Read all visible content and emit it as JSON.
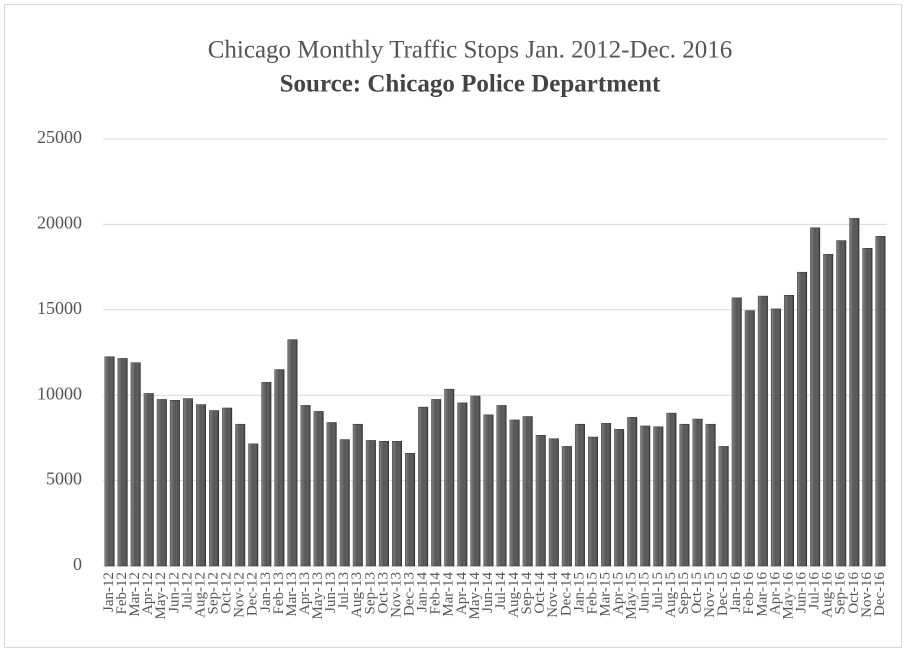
{
  "chart_data": {
    "type": "bar",
    "title": "Chicago Monthly Traffic Stops Jan. 2012-Dec. 2016",
    "subtitle": "Source: Chicago Police Department",
    "categories": [
      "Jan-12",
      "Feb-12",
      "Mar-12",
      "Apr-12",
      "May-12",
      "Jun-12",
      "Jul-12",
      "Aug-12",
      "Sep-12",
      "Oct-12",
      "Nov-12",
      "Dec-12",
      "Jan-13",
      "Feb-13",
      "Mar-13",
      "Apr-13",
      "May-13",
      "Jun-13",
      "Jul-13",
      "Aug-13",
      "Sep-13",
      "Oct-13",
      "Nov-13",
      "Dec-13",
      "Jan-14",
      "Feb-14",
      "Mar-14",
      "Apr-14",
      "May-14",
      "Jun-14",
      "Jul-14",
      "Aug-14",
      "Sep-14",
      "Oct-14",
      "Nov-14",
      "Dec-14",
      "Jan-15",
      "Feb-15",
      "Mar-15",
      "Apr-15",
      "May-15",
      "Jun-15",
      "Jul-15",
      "Aug-15",
      "Sep-15",
      "Oct-15",
      "Nov-15",
      "Dec-15",
      "Jan-16",
      "Feb-16",
      "Mar-16",
      "Apr-16",
      "May-16",
      "Jun-16",
      "Jul-16",
      "Aug-16",
      "Sep-16",
      "Oct-16",
      "Nov-16",
      "Dec-16"
    ],
    "values": [
      12250,
      12150,
      11900,
      10100,
      9750,
      9700,
      9800,
      9450,
      9100,
      9250,
      8300,
      7150,
      10750,
      11500,
      13250,
      9400,
      9050,
      8400,
      7400,
      8300,
      7350,
      7300,
      7300,
      6600,
      9300,
      9750,
      10350,
      9550,
      9950,
      8850,
      9400,
      8550,
      8750,
      7650,
      7450,
      7000,
      8300,
      7550,
      8350,
      8000,
      8700,
      8200,
      8150,
      8950,
      8300,
      8600,
      8300,
      7000,
      15700,
      14950,
      15800,
      15050,
      15850,
      17200,
      19800,
      18250,
      19050,
      20350,
      18600,
      19300
    ],
    "color": "#555555",
    "ylim": [
      0,
      25000
    ],
    "yticks": [
      0,
      5000,
      10000,
      15000,
      20000,
      25000
    ],
    "grid": true
  }
}
